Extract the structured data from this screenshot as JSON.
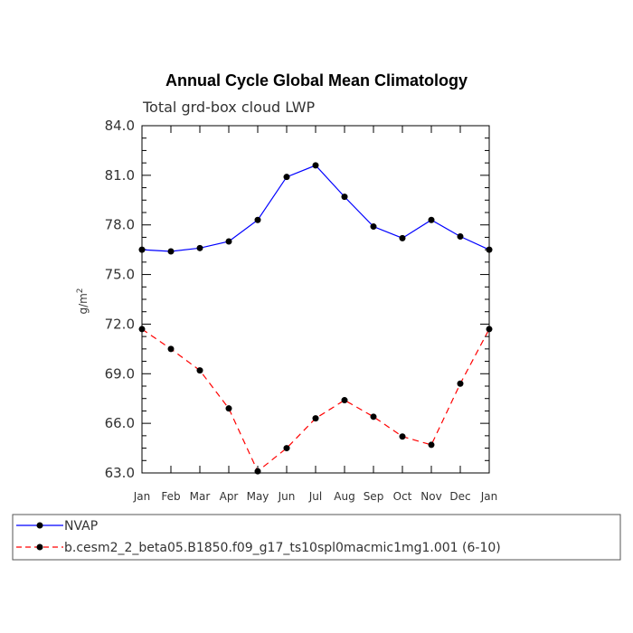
{
  "chart_data": {
    "type": "line",
    "title": "Annual Cycle Global Mean Climatology",
    "subtitle": "Total grd-box cloud LWP",
    "xlabel": "",
    "ylabel": "g/m",
    "ylabel_superscript": "2",
    "categories": [
      "Jan",
      "Feb",
      "Mar",
      "Apr",
      "May",
      "Jun",
      "Jul",
      "Aug",
      "Sep",
      "Oct",
      "Nov",
      "Dec",
      "Jan"
    ],
    "ylim": [
      63.0,
      84.0
    ],
    "yticks": [
      "63.0",
      "66.0",
      "69.0",
      "72.0",
      "75.0",
      "78.0",
      "81.0",
      "84.0"
    ],
    "series": [
      {
        "name": "NVAP",
        "color": "#0000ff",
        "dash": "solid",
        "values": [
          76.5,
          76.4,
          76.6,
          77.0,
          78.3,
          80.9,
          81.6,
          79.7,
          77.9,
          77.2,
          78.3,
          77.3,
          76.5
        ]
      },
      {
        "name": "b.cesm2_2_beta05.B1850.f09_g17_ts10spl0macmic1mg1.001 (6-10)",
        "color": "#ff0000",
        "dash": "dashed",
        "values": [
          71.7,
          70.5,
          69.2,
          66.9,
          63.1,
          64.5,
          66.3,
          67.4,
          66.4,
          65.2,
          64.7,
          68.4,
          71.7
        ]
      }
    ],
    "legend": [
      {
        "label": "NVAP",
        "color": "#0000ff",
        "dash": "solid"
      },
      {
        "label": "b.cesm2_2_beta05.B1850.f09_g17_ts10spl0macmic1mg1.001 (6-10)",
        "color": "#ff0000",
        "dash": "dashed"
      }
    ]
  }
}
